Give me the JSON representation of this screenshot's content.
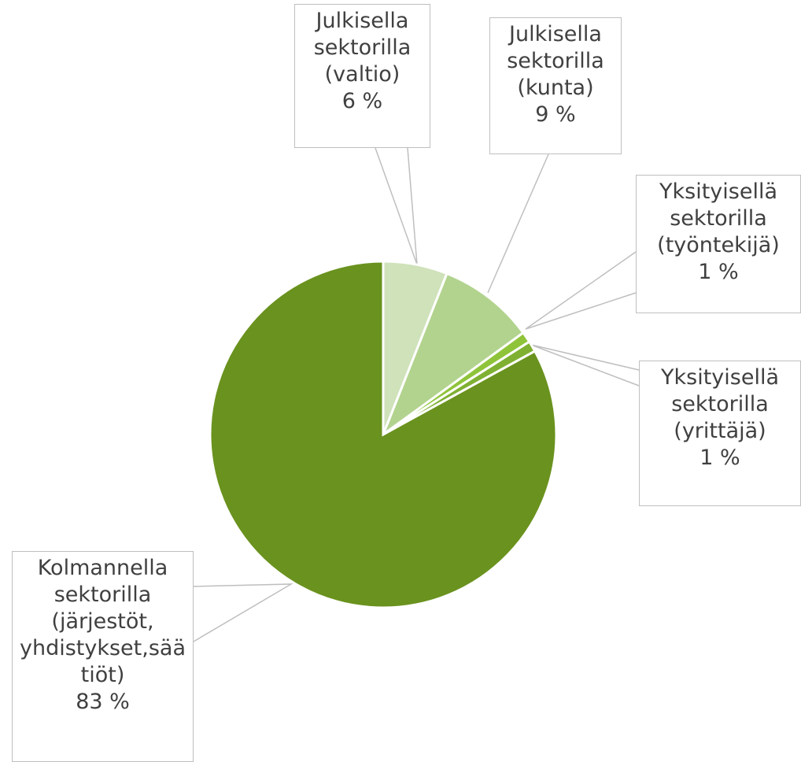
{
  "chart_data": {
    "type": "pie",
    "categories": [
      "Julkisella sektorilla (valtio)",
      "Julkisella sektorilla (kunta)",
      "Yksityisellä sektorilla (työntekijä)",
      "Yksityisellä sektorilla (yrittäjä)",
      "Kolmannella sektorilla (järjestöt, yhdistykset,säätiöt)"
    ],
    "values": [
      6,
      9,
      1,
      1,
      83
    ],
    "value_labels": [
      "6 %",
      "9 %",
      "1 %",
      "1 %",
      "83 %"
    ],
    "colors": [
      "#cfe2ba",
      "#b2d38e",
      "#8fc43a",
      "#7fb032",
      "#6a921e"
    ]
  }
}
